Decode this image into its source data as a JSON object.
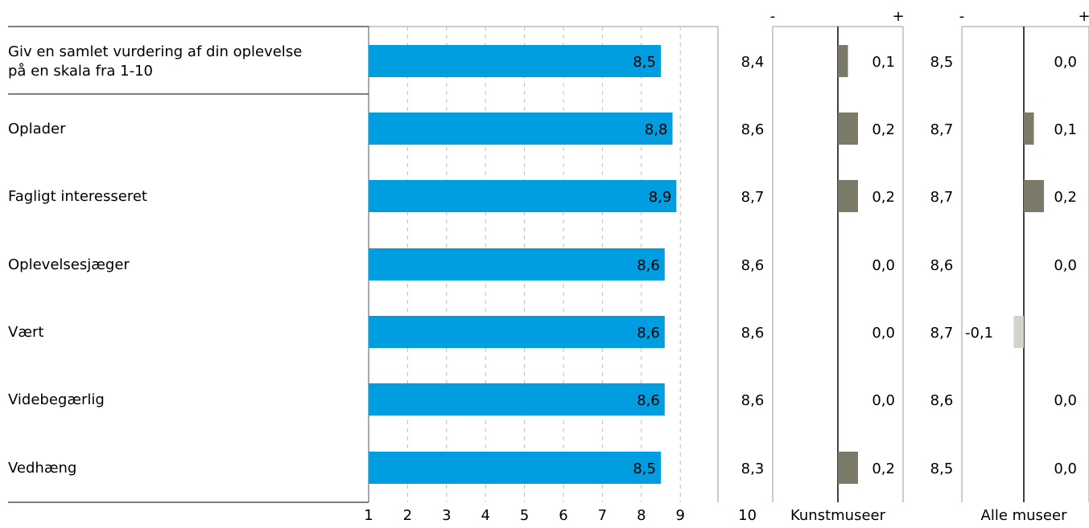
{
  "chart_data": {
    "type": "bar",
    "categories": [
      "Giv en samlet vurdering af din oplevelse\npå en skala fra 1-10",
      "Oplader",
      "Fagligt interesseret",
      "Oplevelsesjæger",
      "Vært",
      "Videbegærlig",
      "Vedhæng"
    ],
    "values": [
      8.5,
      8.8,
      8.9,
      8.6,
      8.6,
      8.6,
      8.5
    ],
    "value_labels": [
      "8,5",
      "8,8",
      "8,9",
      "8,6",
      "8,6",
      "8,6",
      "8,5"
    ],
    "xticks": [
      "1",
      "2",
      "3",
      "4",
      "5",
      "6",
      "7",
      "8",
      "9",
      "10"
    ],
    "xlim": [
      1,
      10
    ],
    "grid": true,
    "bar_color": "#009ee0",
    "comparisons": [
      {
        "name": "Kunstmuseer",
        "reference_values": [
          "8,4",
          "8,6",
          "8,7",
          "8,6",
          "8,6",
          "8,6",
          "8,3"
        ],
        "differences": [
          0.1,
          0.2,
          0.2,
          0.0,
          0.0,
          0.0,
          0.2
        ],
        "difference_labels": [
          "0,1",
          "0,2",
          "0,2",
          "0,0",
          "0,0",
          "0,0",
          "0,2"
        ],
        "minus_label": "-",
        "plus_label": "+"
      },
      {
        "name": "Alle museer",
        "reference_values": [
          "8,5",
          "8,7",
          "8,7",
          "8,6",
          "8,7",
          "8,6",
          "8,5"
        ],
        "differences": [
          0.0,
          0.1,
          0.2,
          0.0,
          -0.1,
          0.0,
          0.0
        ],
        "difference_labels": [
          "0,0",
          "0,1",
          "0,2",
          "0,0",
          "-0,1",
          "0,0",
          "0,0"
        ],
        "minus_label": "-",
        "plus_label": "+"
      }
    ],
    "positive_color": "#7b7a68",
    "negative_color": "#d3d3c9"
  }
}
